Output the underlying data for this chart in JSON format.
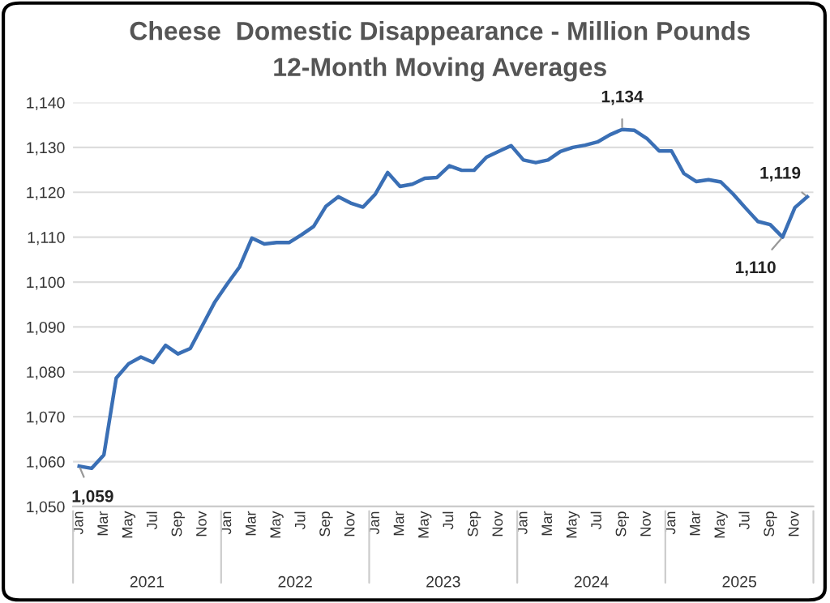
{
  "chart_data": {
    "type": "line",
    "title": "Cheese  Domestic Disappearance - Million Pounds",
    "subtitle": "12-Month Moving Averages",
    "categories": [
      "Jan",
      null,
      "Mar",
      null,
      "May",
      null,
      "Jul",
      null,
      "Sep",
      null,
      "Nov",
      null,
      "Jan",
      null,
      "Mar",
      null,
      "May",
      null,
      "Jul",
      null,
      "Sep",
      null,
      "Nov",
      null,
      "Jan",
      null,
      "Mar",
      null,
      "May",
      null,
      "Jul",
      null,
      "Sep",
      null,
      "Nov",
      null,
      "Jan",
      null,
      "Mar",
      null,
      "May",
      null,
      "Jul",
      null,
      "Sep",
      null,
      "Nov",
      null,
      "Jan",
      null,
      "Mar",
      null,
      "May",
      null,
      "Jul",
      null,
      "Sep",
      null,
      "Nov",
      null
    ],
    "series": [
      {
        "color": "#3a6fb5",
        "values": [
          1059,
          1058.5,
          1061.5,
          1078.6,
          1081.8,
          1083.3,
          1082.1,
          1085.9,
          1084,
          1085.2,
          1090.4,
          1095.6,
          1099.6,
          1103.4,
          1109.8,
          1108.5,
          1108.8,
          1108.8,
          1110.5,
          1112.4,
          1116.9,
          1119,
          1117.6,
          1116.7,
          1119.6,
          1124.4,
          1121.3,
          1121.8,
          1123.1,
          1123.3,
          1125.9,
          1124.9,
          1124.9,
          1127.8,
          1129.1,
          1130.4,
          1127.2,
          1126.6,
          1127.2,
          1129.1,
          1130,
          1130.5,
          1131.2,
          1132.8,
          1134,
          1133.8,
          1132,
          1129.2,
          1129.2,
          1124.2,
          1122.4,
          1122.8,
          1122.3,
          1119.6,
          1116.5,
          1113.5,
          1112.8,
          1110,
          1116.6,
          1119
        ],
        "value_labels": [
          "1,059",
          null,
          null,
          null,
          null,
          null,
          null,
          null,
          null,
          null,
          null,
          null,
          null,
          null,
          null,
          null,
          null,
          null,
          null,
          null,
          null,
          null,
          null,
          null,
          null,
          null,
          null,
          null,
          null,
          null,
          null,
          null,
          null,
          null,
          null,
          null,
          null,
          null,
          null,
          null,
          null,
          null,
          null,
          null,
          "1,134",
          null,
          null,
          null,
          null,
          null,
          null,
          null,
          null,
          null,
          null,
          null,
          null,
          "1,110",
          null,
          "1,119"
        ]
      }
    ],
    "annotations": [
      "2021",
      "2022",
      "2023",
      "2024",
      "2025"
    ],
    "ylim": [
      1050,
      1140
    ],
    "yticks": [
      {
        "value": 1050,
        "label": "1,050"
      },
      {
        "value": 1060,
        "label": "1,060"
      },
      {
        "value": 1070,
        "label": "1,070"
      },
      {
        "value": 1080,
        "label": "1,080"
      },
      {
        "value": 1090,
        "label": "1,090"
      },
      {
        "value": 1100,
        "label": "1,100"
      },
      {
        "value": 1110,
        "label": "1,110"
      },
      {
        "value": 1120,
        "label": "1,120"
      },
      {
        "value": 1130,
        "label": "1,130"
      },
      {
        "value": 1140,
        "label": "1,140"
      }
    ],
    "grid": "y",
    "legend": false,
    "marker": "none",
    "line_style": "solid"
  }
}
